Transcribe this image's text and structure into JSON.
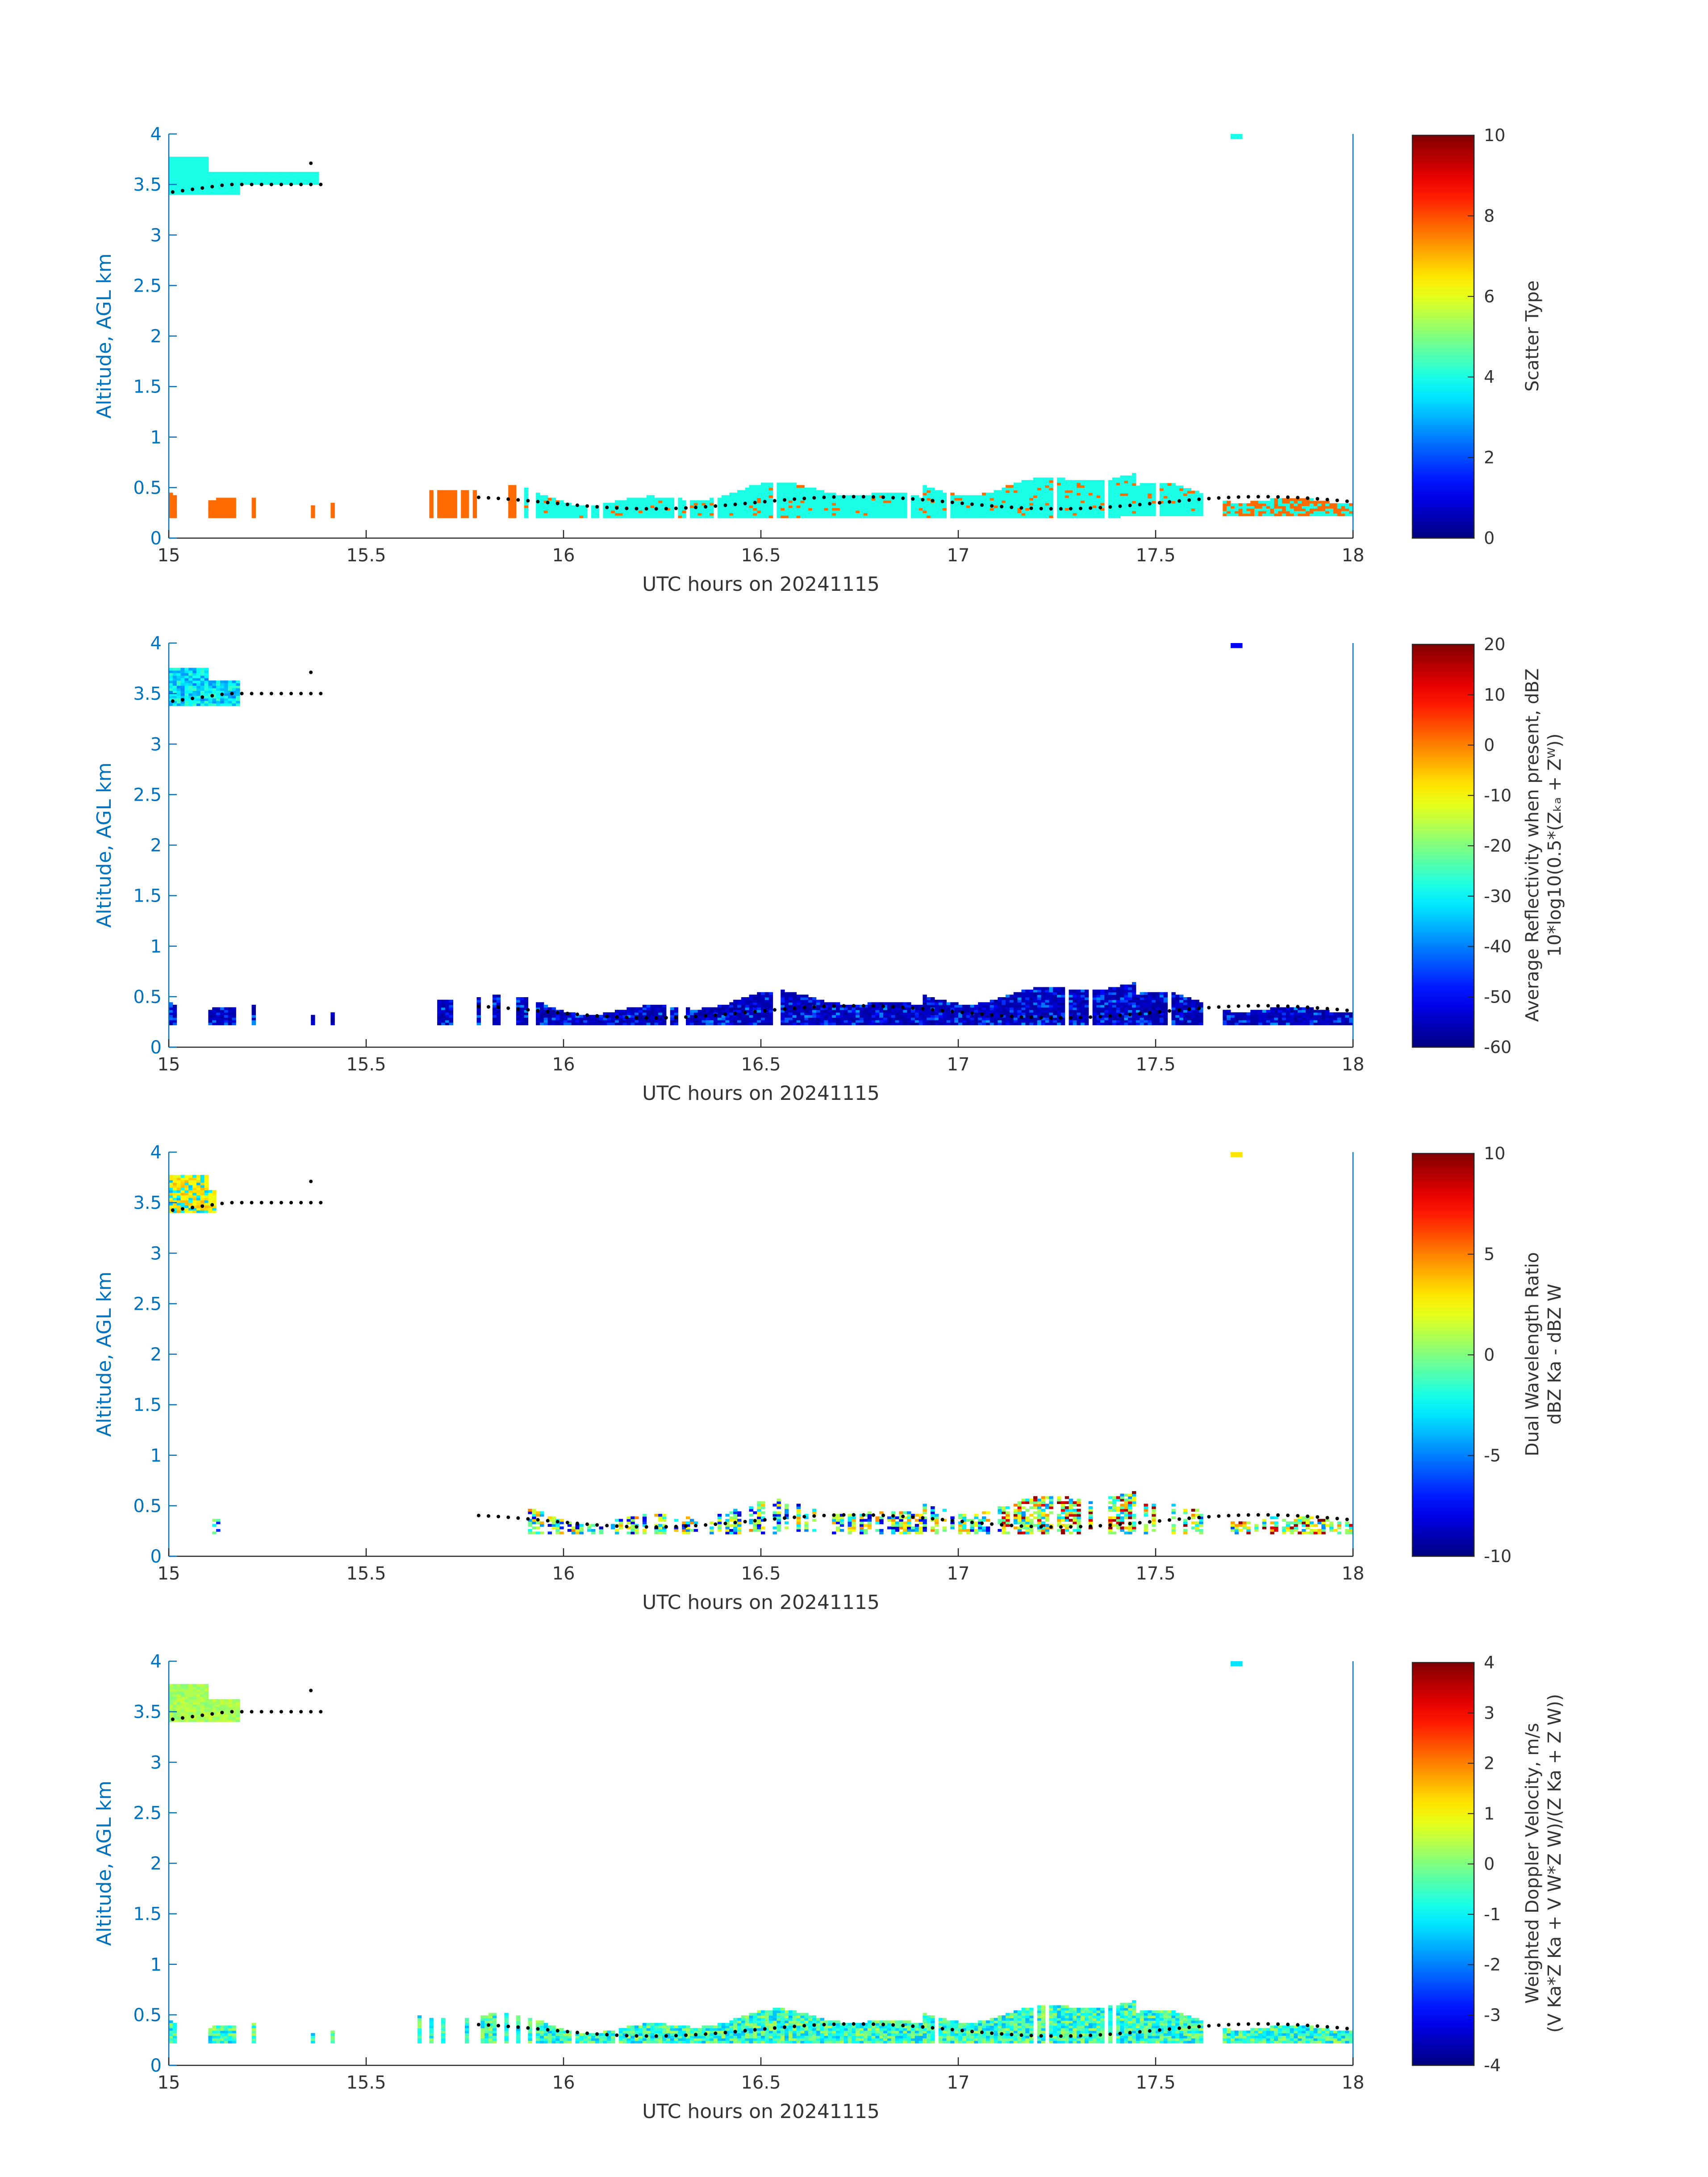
{
  "colors": {
    "axis_blue": "#0072BD",
    "text": "#333333"
  },
  "chart_data": [
    {
      "type": "heatmap",
      "xlabel": "UTC hours on 20241115",
      "ylabel": "Altitude, AGL km",
      "xlim": [
        15,
        18
      ],
      "ylim": [
        0,
        4
      ],
      "xticks": [
        "15",
        "15.5",
        "16",
        "16.5",
        "17",
        "17.5",
        "18"
      ],
      "yticks": [
        "0",
        "0.5",
        "1",
        "1.5",
        "2",
        "2.5",
        "3",
        "3.5",
        "4"
      ],
      "colorbar": {
        "label": "Scatter Type",
        "label2": "",
        "range": [
          0,
          10
        ],
        "ticks": [
          "0",
          "2",
          "4",
          "6",
          "8",
          "10"
        ]
      },
      "mode": "scatter_type"
    },
    {
      "type": "heatmap",
      "xlabel": "UTC hours on 20241115",
      "ylabel": "Altitude, AGL km",
      "xlim": [
        15,
        18
      ],
      "ylim": [
        0,
        4
      ],
      "xticks": [
        "15",
        "15.5",
        "16",
        "16.5",
        "17",
        "17.5",
        "18"
      ],
      "yticks": [
        "0",
        "0.5",
        "1",
        "1.5",
        "2",
        "2.5",
        "3",
        "3.5",
        "4"
      ],
      "colorbar": {
        "label": "Average Reflectivity when present, dBZ",
        "label2": "10*log10(0.5*(Zₖₐ + Zᵂ))",
        "range": [
          -60,
          20
        ],
        "ticks": [
          "-60",
          "-50",
          "-40",
          "-30",
          "-20",
          "-10",
          "0",
          "10",
          "20"
        ]
      },
      "mode": "reflectivity"
    },
    {
      "type": "heatmap",
      "xlabel": "UTC hours on 20241115",
      "ylabel": "Altitude, AGL km",
      "xlim": [
        15,
        18
      ],
      "ylim": [
        0,
        4
      ],
      "xticks": [
        "15",
        "15.5",
        "16",
        "16.5",
        "17",
        "17.5",
        "18"
      ],
      "yticks": [
        "0",
        "0.5",
        "1",
        "1.5",
        "2",
        "2.5",
        "3",
        "3.5",
        "4"
      ],
      "colorbar": {
        "label": "Dual Wavelength Ratio",
        "label2": "dBZ Ka - dBZ W",
        "range": [
          -10,
          10
        ],
        "ticks": [
          "-10",
          "-5",
          "0",
          "5",
          "10"
        ]
      },
      "mode": "dwr"
    },
    {
      "type": "heatmap",
      "xlabel": "UTC hours on 20241115",
      "ylabel": "Altitude, AGL km",
      "xlim": [
        15,
        18
      ],
      "ylim": [
        0,
        4
      ],
      "xticks": [
        "15",
        "15.5",
        "16",
        "16.5",
        "17",
        "17.5",
        "18"
      ],
      "yticks": [
        "0",
        "0.5",
        "1",
        "1.5",
        "2",
        "2.5",
        "3",
        "3.5",
        "4"
      ],
      "colorbar": {
        "label": "Weighted Doppler Velocity, m/s",
        "label2": "(V Ka*Z Ka + V W*Z W)/(Z Ka + Z W))",
        "range": [
          -4,
          4
        ],
        "ticks": [
          "-4",
          "-3",
          "-2",
          "-1",
          "0",
          "1",
          "2",
          "3",
          "4"
        ]
      },
      "mode": "velocity"
    }
  ]
}
